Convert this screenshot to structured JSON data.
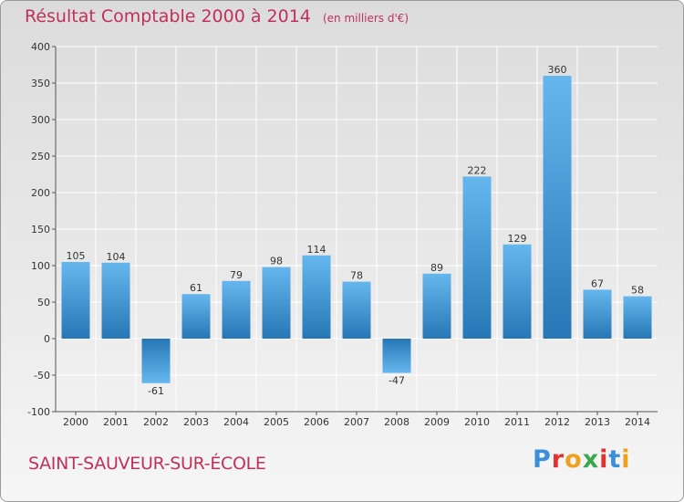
{
  "header": {
    "title": "Résultat Comptable 2000 à 2014",
    "unit": "(en milliers d'€)"
  },
  "footer": {
    "commune": "SAINT-SAUVEUR-SUR-ÉCOLE",
    "logo": [
      "P",
      "r",
      "o",
      "x",
      "i",
      "t",
      "i"
    ],
    "logo_colors": [
      "#3a8fd8",
      "#e2322e",
      "#f0a020",
      "#3aa84a",
      "#e2322e",
      "#3a8fd8",
      "#f0a020"
    ]
  },
  "colors": {
    "bar_light": "#63b3ec",
    "bar_dark": "#2a7ab8",
    "grid": "#ffffff",
    "text": "#333333"
  },
  "chart_data": {
    "type": "bar",
    "title": "Résultat Comptable 2000 à 2014",
    "xlabel": "",
    "ylabel": "",
    "ylim": [
      -100,
      400
    ],
    "yticks": [
      -100,
      -50,
      0,
      50,
      100,
      150,
      200,
      250,
      300,
      350,
      400
    ],
    "categories": [
      "2000",
      "2001",
      "2002",
      "2003",
      "2004",
      "2005",
      "2006",
      "2007",
      "2008",
      "2009",
      "2010",
      "2011",
      "2012",
      "2013",
      "2014"
    ],
    "values": [
      105,
      104,
      -61,
      61,
      79,
      98,
      114,
      78,
      -47,
      89,
      222,
      129,
      360,
      67,
      58
    ],
    "grid": true
  }
}
